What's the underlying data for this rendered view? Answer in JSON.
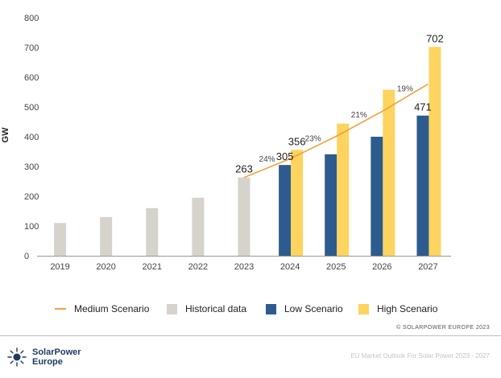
{
  "chart_data": {
    "type": "bar",
    "categories": [
      "2019",
      "2020",
      "2021",
      "2022",
      "2023",
      "2024",
      "2025",
      "2026",
      "2027"
    ],
    "ylabel": "GW",
    "ylim": [
      0,
      800
    ],
    "yticks": [
      0,
      100,
      200,
      300,
      400,
      500,
      600,
      700,
      800
    ],
    "grid": false,
    "legend_placement": "bottom",
    "series": [
      {
        "name": "Historical data",
        "color": "#d6d2cc",
        "values": [
          110,
          130,
          160,
          195,
          263,
          null,
          null,
          null,
          null
        ]
      },
      {
        "name": "Low Scenario",
        "color": "#2d5b8e",
        "values": [
          null,
          null,
          null,
          null,
          null,
          305,
          341,
          400,
          471
        ]
      },
      {
        "name": "High Scenario",
        "color": "#fdd45f",
        "values": [
          null,
          null,
          null,
          null,
          null,
          356,
          444,
          558,
          702
        ]
      }
    ],
    "line_series": {
      "name": "Medium Scenario",
      "color": "#f0a23a",
      "x": [
        "2023",
        "2024",
        "2025",
        "2026",
        "2027"
      ],
      "values": [
        263,
        326,
        401,
        485,
        577
      ]
    },
    "value_labels": [
      {
        "category": "2023",
        "value": 263,
        "text": "263"
      },
      {
        "category": "2024",
        "value": 305,
        "text": "305"
      },
      {
        "category": "2024",
        "value": 356,
        "text": "356"
      },
      {
        "category": "2027",
        "value": 471,
        "text": "471"
      },
      {
        "category": "2027",
        "value": 702,
        "text": "702"
      }
    ],
    "growth_labels": [
      {
        "between": [
          "2023",
          "2024"
        ],
        "text": "24%"
      },
      {
        "between": [
          "2024",
          "2025"
        ],
        "text": "23%"
      },
      {
        "between": [
          "2025",
          "2026"
        ],
        "text": "21%"
      },
      {
        "between": [
          "2026",
          "2027"
        ],
        "text": "19%"
      }
    ]
  },
  "legend": {
    "medium": "Medium Scenario",
    "historical": "Historical data",
    "low": "Low Scenario",
    "high": "High Scenario"
  },
  "colors": {
    "historical": "#d6d2cc",
    "low": "#2d5b8e",
    "high": "#fdd45f",
    "medium": "#f0a23a"
  },
  "footer": {
    "copyright": "© SOLARPOWER EUROPE 2023",
    "logo_line1": "SolarPower",
    "logo_line2": "Europe",
    "note": "EU Market Outlook For Solar Power 2023 - 2027"
  }
}
